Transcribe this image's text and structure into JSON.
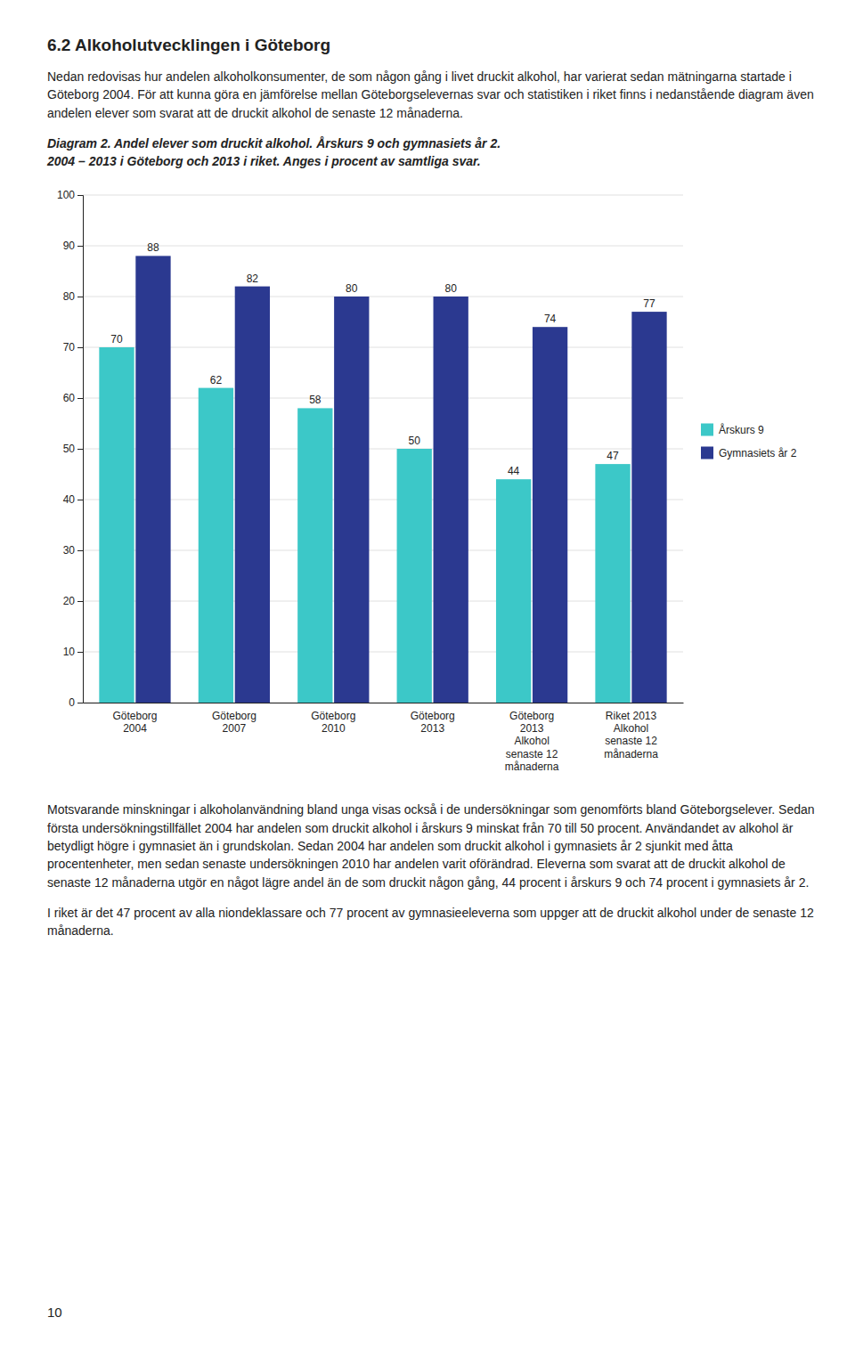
{
  "heading": "6.2 Alkoholutvecklingen i Göteborg",
  "intro": "Nedan redovisas hur andelen alkoholkonsumenter, de som någon gång i livet druckit alkohol, har varierat sedan mätningarna startade i Göteborg 2004. För att kunna göra en jämförelse mellan Göteborgselevernas svar och statistiken i riket finns i nedanstående diagram även andelen elever som svarat att de druckit alkohol de senaste 12 månaderna.",
  "body": [
    "Motsvarande minskningar i alkoholanvändning bland unga visas också i de undersökningar som genomförts bland Göteborgselever. Sedan första undersökningstillfället 2004 har andelen som druckit alkohol i årskurs 9 minskat från 70 till 50 procent. Användandet av alkohol är betydligt högre i gymnasiet än i grundskolan. Sedan 2004 har andelen som druckit alkohol i gymnasiets år 2 sjunkit med åtta procentenheter, men sedan senaste undersökningen 2010 har andelen varit oförändrad. Eleverna som svarat att de druckit alkohol de senaste 12 månaderna utgör en något lägre andel än de som druckit någon gång, 44 procent i årskurs 9 och 74 procent i gymnasiets år 2.",
    "I riket är det 47 procent av alla niondeklassare och 77 procent av gymnasieeleverna som uppger att de druckit alkohol under de senaste 12 månaderna."
  ],
  "page_number": "10",
  "chart_data": {
    "type": "bar",
    "title": "Diagram 2. Andel elever som druckit alkohol. Årskurs 9 och gymnasiets år 2.",
    "subtitle": "2004 – 2013 i Göteborg och 2013 i riket. Anges i procent av samtliga svar.",
    "categories": [
      "Göteborg\n2004",
      "Göteborg\n2007",
      "Göteborg\n2010",
      "Göteborg\n2013",
      "Göteborg\n2013\nAlkohol\nsenaste 12\nmånaderna",
      "Riket 2013\nAlkohol\nsenaste 12\nmånaderna"
    ],
    "series": [
      {
        "name": "Årskurs 9",
        "color": "#3CC8C8",
        "values": [
          70,
          62,
          58,
          50,
          44,
          47
        ]
      },
      {
        "name": "Gymnasiets år 2",
        "color": "#2B3990",
        "values": [
          88,
          82,
          80,
          80,
          74,
          77
        ]
      }
    ],
    "ylim": [
      0,
      100
    ],
    "yticks": [
      0,
      10,
      20,
      30,
      40,
      50,
      60,
      70,
      80,
      90,
      100
    ],
    "grid": true,
    "legend": "right",
    "data_labels": true
  }
}
